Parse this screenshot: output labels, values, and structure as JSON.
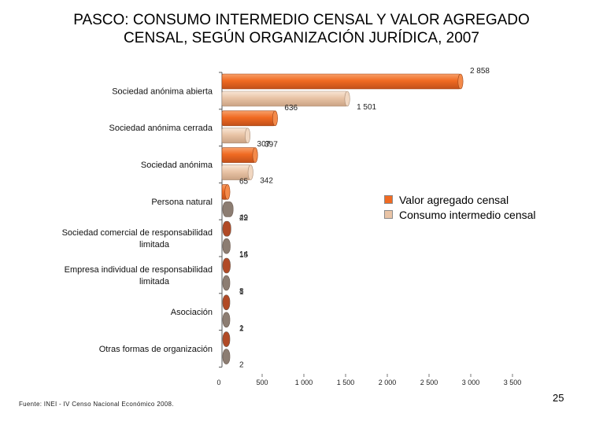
{
  "page": {
    "title_line1": "PASCO: CONSUMO INTERMEDIO CENSAL Y VALOR AGREGADO",
    "title_line2": "CENSAL, SEGÚN ORGANIZACIÓN JURÍDICA, 2007",
    "source": "Fuente: INEI - IV Censo Nacional Económico 2008.",
    "page_number": "25"
  },
  "colors": {
    "valor_agregado": "#f06a22",
    "consumo_intermedio": "#e9c4a6",
    "marker_valor": "#b14a26",
    "marker_consumo": "#8c7d72"
  },
  "chart_data": {
    "type": "bar",
    "orientation": "horizontal",
    "categories": [
      "Sociedad anónima abierta",
      "Sociedad anónima cerrada",
      "Sociedad anónima",
      "Persona natural",
      "Sociedad comercial de responsabilidad limitada",
      "Empresa individual de responsabilidad limitada",
      "Asociación",
      "Otras formas de organización"
    ],
    "category_lines": [
      [
        "Sociedad anónima abierta"
      ],
      [
        "Sociedad anónima cerrada"
      ],
      [
        "Sociedad anónima"
      ],
      [
        "Persona natural"
      ],
      [
        "Sociedad comercial de responsabilidad",
        "limitada"
      ],
      [
        "Empresa individual de responsabilidad",
        "limitada"
      ],
      [
        "Asociación"
      ],
      [
        "Otras formas de organización"
      ]
    ],
    "series": [
      {
        "name": "Valor agregado censal",
        "values": [
          2858,
          636,
          397,
          65,
          22,
          15,
          1,
          2
        ],
        "labels": [
          "2 858",
          "636",
          "397",
          "65",
          "22",
          "15",
          "1",
          "2"
        ]
      },
      {
        "name": "Consumo intermedio censal",
        "values": [
          1501,
          307,
          342,
          49,
          14,
          8,
          1,
          2
        ],
        "labels": [
          "1 501",
          "307",
          "342",
          "49",
          "14",
          "8",
          "1",
          "2"
        ]
      }
    ],
    "xlim": [
      0,
      3500
    ],
    "xticks": [
      0,
      500,
      1000,
      1500,
      2000,
      2500,
      3000,
      3500
    ],
    "xtick_labels": [
      "0",
      "500",
      "1 000",
      "1 500",
      "2 000",
      "2 500",
      "3 000",
      "3 500"
    ],
    "grid": false,
    "legend_position": "right-middle"
  }
}
